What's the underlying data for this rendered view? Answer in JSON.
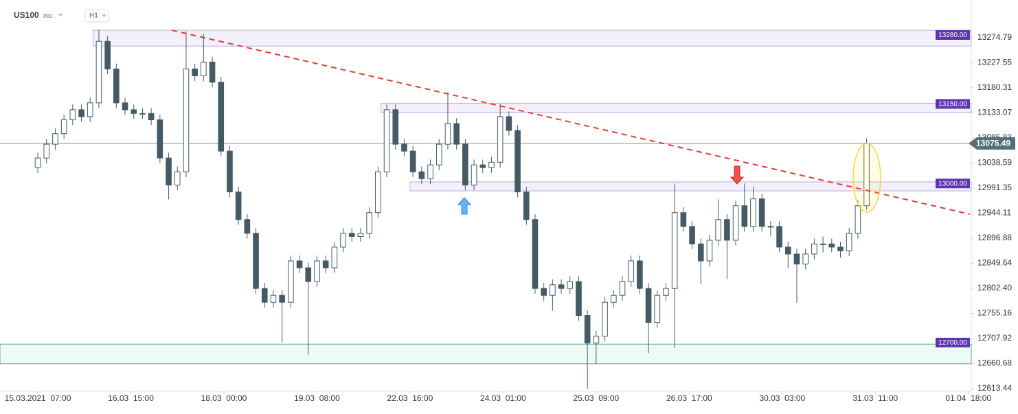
{
  "chart_data": {
    "type": "candlestick",
    "title": "US100",
    "subtitle": "IND",
    "timeframe": "H1",
    "up_color": "#ffffff",
    "down_color": "#455a64",
    "outline_color": "#455a64",
    "xlim": [
      -13,
      321
    ],
    "ylim": [
      12608,
      13346
    ],
    "grid": false,
    "xticks": [
      {
        "value": 0,
        "label": "15.03.2021  07:00"
      },
      {
        "value": 32,
        "label": "16.03  15:00"
      },
      {
        "value": 64,
        "label": "18.03  00:00"
      },
      {
        "value": 96,
        "label": "19.03  08:00"
      },
      {
        "value": 128,
        "label": "22.03  16:00"
      },
      {
        "value": 160,
        "label": "24.03  01:00"
      },
      {
        "value": 192,
        "label": "25.03  09:00"
      },
      {
        "value": 224,
        "label": "26.03  17:00"
      },
      {
        "value": 256,
        "label": "30.03  03:00"
      },
      {
        "value": 288,
        "label": "31.03  11:00"
      },
      {
        "value": 320,
        "label": "01.04  18:00"
      }
    ],
    "yticks": [
      13274.79,
      13227.55,
      13180.31,
      13133.07,
      13085.83,
      13038.59,
      12991.35,
      12944.11,
      12896.88,
      12849.64,
      {
        "value": 12802.4,
        "label": "12802.40"
      },
      12755.16,
      12707.92,
      12660.68,
      12613.44
    ],
    "candles": {
      "x": [
        0,
        3,
        6,
        9,
        12,
        15,
        18,
        21,
        24,
        27,
        30,
        33,
        36,
        39,
        42,
        45,
        48,
        51,
        54,
        57,
        60,
        63,
        66,
        69,
        72,
        75,
        78,
        81,
        84,
        87,
        90,
        93,
        96,
        99,
        102,
        105,
        108,
        111,
        114,
        117,
        120,
        123,
        126,
        129,
        132,
        135,
        138,
        141,
        144,
        147,
        150,
        153,
        156,
        159,
        162,
        165,
        168,
        171,
        174,
        177,
        180,
        183,
        186,
        189,
        192,
        195,
        198,
        201,
        204,
        207,
        210,
        213,
        216,
        219,
        222,
        225,
        228,
        231,
        234,
        237,
        240,
        243,
        246,
        249,
        252,
        255,
        258,
        261,
        264,
        267,
        270,
        273,
        276,
        279,
        282,
        285
      ],
      "open": [
        13030,
        13048,
        13074,
        13094,
        13120,
        13139,
        13126,
        13152,
        13268,
        13216,
        13152,
        13139,
        13132,
        13132,
        13120,
        13048,
        12997,
        13022,
        13216,
        13203,
        13229,
        13191,
        13061,
        12984,
        12932,
        12906,
        12802,
        12776,
        12789,
        12776,
        12854,
        12841,
        12815,
        12854,
        12841,
        12880,
        12906,
        12900,
        12906,
        12945,
        13022,
        13139,
        13074,
        13061,
        13022,
        13009,
        13035,
        13074,
        13113,
        13074,
        12997,
        13035,
        13030,
        13040,
        13126,
        13100,
        12984,
        12932,
        12802,
        12789,
        12809,
        12802,
        12815,
        12751,
        12699,
        12712,
        12776,
        12789,
        12815,
        12854,
        12802,
        12738,
        12789,
        12802,
        12945,
        12919,
        12886,
        12854,
        12893,
        12932,
        12893,
        12958,
        12919,
        12971,
        12919,
        12919,
        12880,
        12867,
        12848,
        12867,
        12886,
        12886,
        12880,
        12873,
        12906,
        12958
      ],
      "high": [
        13058,
        13084,
        13104,
        13130,
        13149,
        13149,
        13162,
        13290,
        13278,
        13226,
        13162,
        13149,
        13142,
        13142,
        13130,
        13058,
        13032,
        13287,
        13226,
        13282,
        13239,
        13201,
        13071,
        12994,
        12942,
        12916,
        12812,
        12799,
        12799,
        12864,
        12864,
        12851,
        12864,
        12864,
        12890,
        12916,
        12916,
        12916,
        12955,
        13032,
        13149,
        13149,
        13084,
        13071,
        13032,
        13045,
        13084,
        13172,
        13123,
        13084,
        13045,
        13045,
        13050,
        13150,
        13136,
        13110,
        12994,
        12942,
        12812,
        12819,
        12819,
        12825,
        12825,
        12761,
        12722,
        12786,
        12799,
        12825,
        12864,
        12864,
        12812,
        12799,
        12812,
        13000,
        12955,
        12929,
        12896,
        12903,
        12970,
        12942,
        12968,
        13000,
        12994,
        12981,
        12929,
        12929,
        12890,
        12877,
        12877,
        12896,
        12900,
        12896,
        12890,
        12916,
        12968,
        13085
      ],
      "low": [
        13020,
        13038,
        13064,
        13084,
        13110,
        13116,
        13116,
        13142,
        13206,
        13142,
        13129,
        13122,
        13122,
        13110,
        13038,
        12970,
        12987,
        13012,
        13193,
        13193,
        13181,
        13051,
        12974,
        12922,
        12896,
        12792,
        12766,
        12766,
        12700,
        12766,
        12831,
        12677,
        12805,
        12831,
        12831,
        12870,
        12890,
        12890,
        12896,
        12935,
        13012,
        13064,
        13051,
        13012,
        12999,
        12999,
        13025,
        13064,
        13064,
        12987,
        12987,
        13020,
        13020,
        13030,
        13090,
        12974,
        12922,
        12792,
        12779,
        12760,
        12792,
        12792,
        12741,
        12613,
        12660,
        12702,
        12766,
        12779,
        12805,
        12792,
        12680,
        12728,
        12779,
        12690,
        12909,
        12876,
        12810,
        12844,
        12883,
        12820,
        12883,
        12909,
        12909,
        12909,
        12900,
        12870,
        12840,
        12775,
        12838,
        12857,
        12870,
        12870,
        12860,
        12863,
        12896,
        12950
      ],
      "close": [
        13048,
        13074,
        13094,
        13120,
        13139,
        13126,
        13152,
        13268,
        13216,
        13152,
        13139,
        13132,
        13132,
        13120,
        13048,
        12997,
        13022,
        13216,
        13203,
        13229,
        13191,
        13061,
        12984,
        12932,
        12906,
        12802,
        12776,
        12789,
        12776,
        12854,
        12841,
        12815,
        12854,
        12841,
        12880,
        12906,
        12900,
        12906,
        12945,
        13022,
        13139,
        13074,
        13061,
        13022,
        13009,
        13035,
        13074,
        13113,
        13074,
        12997,
        13035,
        13030,
        13040,
        13126,
        13100,
        12984,
        12932,
        12802,
        12789,
        12809,
        12802,
        12815,
        12751,
        12699,
        12712,
        12776,
        12789,
        12815,
        12854,
        12802,
        12738,
        12789,
        12802,
        12945,
        12919,
        12886,
        12854,
        12893,
        12932,
        12893,
        12958,
        12919,
        12971,
        12919,
        12919,
        12880,
        12867,
        12848,
        12867,
        12886,
        12886,
        12880,
        12873,
        12906,
        12958,
        13075.49
      ]
    },
    "levels": [
      {
        "value": 13280,
        "label": "13280.00",
        "from": 19,
        "band": [
          13259,
          13289
        ],
        "color": "#5e35b1",
        "fill": "#f3f0fb"
      },
      {
        "value": 13150,
        "label": "13150.00",
        "from": 118,
        "band": [
          13134,
          13151
        ],
        "color": "#5e35b1",
        "fill": "#f3f0fb"
      },
      {
        "value": 13000,
        "label": "13000.00",
        "from": 128,
        "band": [
          12986,
          13003
        ],
        "color": "#5e35b1",
        "fill": "#f3f0fb"
      },
      {
        "value": 12700,
        "label": "12700.00",
        "from": -13,
        "band": [
          12660,
          12697
        ],
        "color": "#5e35b1",
        "fill": "#eefaf4",
        "edge": "#4caf8a"
      }
    ]
  }
}
